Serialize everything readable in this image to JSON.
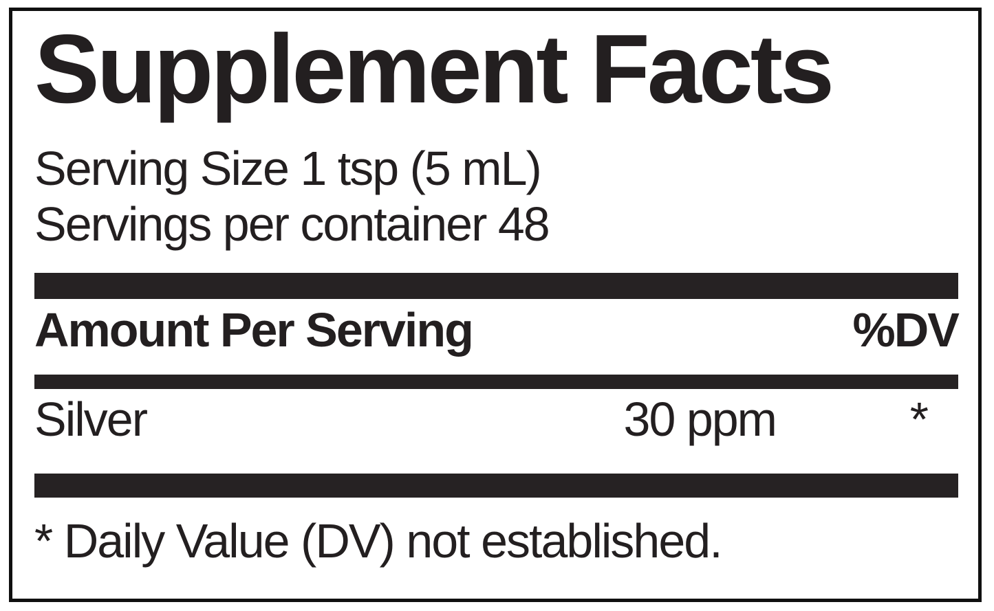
{
  "panel": {
    "title": "Supplement Facts",
    "serving_size": "Serving Size 1 tsp (5 mL)",
    "servings_per_container": "Servings per container 48",
    "headers": {
      "amount": "Amount Per Serving",
      "dv": "%DV"
    },
    "rows": [
      {
        "name": "Silver",
        "amount": "30 ppm",
        "dv": "*"
      }
    ],
    "footnote": "* Daily Value (DV) not established.",
    "colors": {
      "text": "#231f20",
      "divider_bar": "#262223",
      "border": "#101010",
      "background": "#ffffff"
    }
  }
}
